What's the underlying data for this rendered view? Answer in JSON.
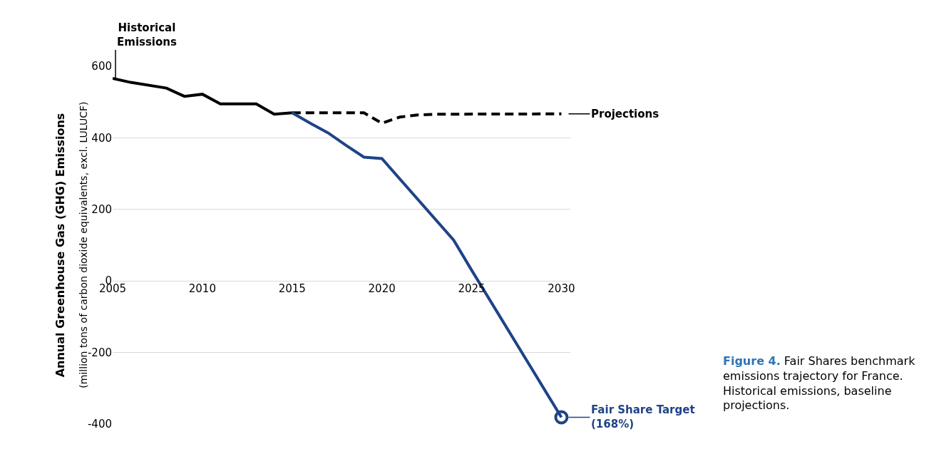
{
  "chart_data": {
    "type": "line",
    "ylabel": "Annual Greenhouse Gas (GHG) Emissions",
    "annotations": [
      "(million tons of carbon dioxide equivalents, excl. LULUCF)",
      "Figure 4.",
      "Fair Shares benchmark emissions trajectory for France. Historical emissions, baseline projections."
    ],
    "series": [
      {
        "name": "Historical Emissions",
        "color": "#000000",
        "line_style": "solid",
        "x": [
          2005,
          2006,
          2008,
          2009,
          2010,
          2011,
          2013,
          2014,
          2015
        ],
        "values": [
          566,
          555,
          539,
          516,
          522,
          495,
          495,
          466,
          470
        ]
      },
      {
        "name": "Projections",
        "color": "#000000",
        "line_style": "dashed",
        "x": [
          2015,
          2019,
          2020,
          2021,
          2022,
          2023,
          2030
        ],
        "values": [
          470,
          470,
          441,
          458,
          464,
          466,
          467
        ]
      },
      {
        "name": "Fair Share Target (168%)",
        "color": "#1f4388",
        "line_style": "solid",
        "x": [
          2015,
          2016,
          2017,
          2018,
          2019,
          2020,
          2024,
          2025,
          2030
        ],
        "values": [
          470,
          441,
          414,
          379,
          346,
          342,
          114,
          30,
          -381
        ]
      }
    ],
    "xlim": [
      2005,
      2030.5
    ],
    "xticks": [
      2005,
      2010,
      2015,
      2020,
      2025,
      2030
    ],
    "ylim": [
      -400,
      600
    ],
    "yticks": [
      -400,
      -200,
      0,
      200,
      400,
      600
    ],
    "grid": "y",
    "legend": "right"
  }
}
